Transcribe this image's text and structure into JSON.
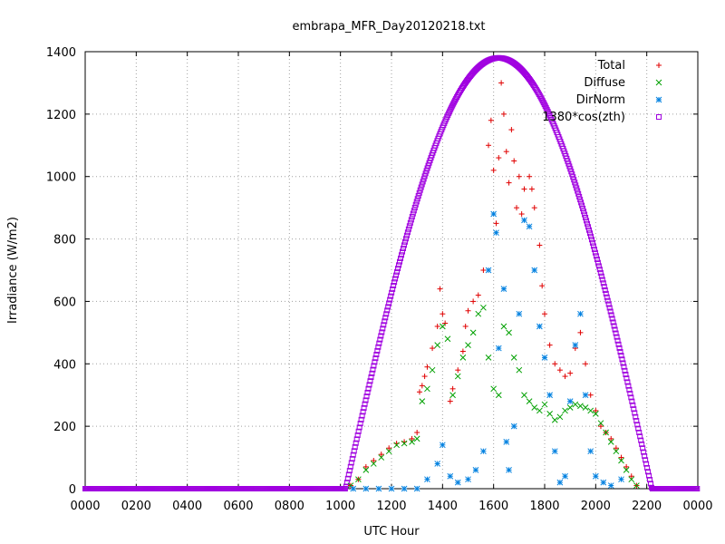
{
  "chart_data": {
    "type": "scatter",
    "title": "embrapa_MFR_Day20120218.txt",
    "xlabel": "UTC Hour",
    "ylabel": "Irradiance (W/m2)",
    "xlim": [
      0,
      24
    ],
    "ylim": [
      0,
      1400
    ],
    "x_ticks": [
      "0000",
      "0200",
      "0400",
      "0600",
      "0800",
      "1000",
      "1200",
      "1400",
      "1600",
      "1800",
      "2000",
      "2200",
      "0000"
    ],
    "y_ticks": [
      "0",
      "200",
      "400",
      "600",
      "800",
      "1000",
      "1200",
      "1400"
    ],
    "grid": true,
    "legend_position": "top-right",
    "series": [
      {
        "name": "Total",
        "marker": "+",
        "color": "#e00000",
        "points": [
          [
            10.4,
            10
          ],
          [
            10.7,
            30
          ],
          [
            11.0,
            70
          ],
          [
            11.3,
            90
          ],
          [
            11.6,
            110
          ],
          [
            11.9,
            130
          ],
          [
            12.2,
            145
          ],
          [
            12.5,
            150
          ],
          [
            12.8,
            160
          ],
          [
            13.0,
            180
          ],
          [
            13.1,
            310
          ],
          [
            13.2,
            330
          ],
          [
            13.3,
            360
          ],
          [
            13.4,
            390
          ],
          [
            13.6,
            450
          ],
          [
            13.8,
            520
          ],
          [
            13.9,
            640
          ],
          [
            14.0,
            560
          ],
          [
            14.1,
            530
          ],
          [
            14.3,
            280
          ],
          [
            14.4,
            320
          ],
          [
            14.6,
            380
          ],
          [
            14.8,
            440
          ],
          [
            14.9,
            520
          ],
          [
            15.0,
            570
          ],
          [
            15.2,
            600
          ],
          [
            15.4,
            620
          ],
          [
            15.6,
            700
          ],
          [
            15.8,
            1100
          ],
          [
            15.9,
            1180
          ],
          [
            16.0,
            1020
          ],
          [
            16.1,
            850
          ],
          [
            16.2,
            1060
          ],
          [
            16.3,
            1300
          ],
          [
            16.4,
            1200
          ],
          [
            16.5,
            1080
          ],
          [
            16.6,
            980
          ],
          [
            16.7,
            1150
          ],
          [
            16.8,
            1050
          ],
          [
            16.9,
            900
          ],
          [
            17.0,
            1000
          ],
          [
            17.1,
            880
          ],
          [
            17.2,
            960
          ],
          [
            17.4,
            1000
          ],
          [
            17.5,
            960
          ],
          [
            17.6,
            900
          ],
          [
            17.8,
            780
          ],
          [
            17.9,
            650
          ],
          [
            18.0,
            560
          ],
          [
            18.2,
            460
          ],
          [
            18.4,
            400
          ],
          [
            18.6,
            380
          ],
          [
            18.8,
            360
          ],
          [
            19.0,
            370
          ],
          [
            19.2,
            450
          ],
          [
            19.4,
            500
          ],
          [
            19.6,
            400
          ],
          [
            19.8,
            300
          ],
          [
            20.0,
            250
          ],
          [
            20.2,
            200
          ],
          [
            20.4,
            180
          ],
          [
            20.6,
            160
          ],
          [
            20.8,
            130
          ],
          [
            21.0,
            100
          ],
          [
            21.2,
            70
          ],
          [
            21.4,
            40
          ],
          [
            21.6,
            10
          ]
        ]
      },
      {
        "name": "Diffuse",
        "marker": "x",
        "color": "#00a000",
        "points": [
          [
            10.4,
            10
          ],
          [
            10.7,
            30
          ],
          [
            11.0,
            60
          ],
          [
            11.3,
            80
          ],
          [
            11.6,
            100
          ],
          [
            11.9,
            120
          ],
          [
            12.2,
            140
          ],
          [
            12.5,
            145
          ],
          [
            12.8,
            150
          ],
          [
            13.0,
            160
          ],
          [
            13.2,
            280
          ],
          [
            13.4,
            320
          ],
          [
            13.6,
            380
          ],
          [
            13.8,
            460
          ],
          [
            14.0,
            520
          ],
          [
            14.2,
            480
          ],
          [
            14.4,
            300
          ],
          [
            14.6,
            360
          ],
          [
            14.8,
            420
          ],
          [
            15.0,
            460
          ],
          [
            15.2,
            500
          ],
          [
            15.4,
            560
          ],
          [
            15.6,
            580
          ],
          [
            15.8,
            420
          ],
          [
            16.0,
            320
          ],
          [
            16.2,
            300
          ],
          [
            16.4,
            520
          ],
          [
            16.6,
            500
          ],
          [
            16.8,
            420
          ],
          [
            17.0,
            380
          ],
          [
            17.2,
            300
          ],
          [
            17.4,
            280
          ],
          [
            17.6,
            260
          ],
          [
            17.8,
            250
          ],
          [
            18.0,
            270
          ],
          [
            18.2,
            240
          ],
          [
            18.4,
            220
          ],
          [
            18.6,
            230
          ],
          [
            18.8,
            250
          ],
          [
            19.0,
            260
          ],
          [
            19.2,
            270
          ],
          [
            19.4,
            265
          ],
          [
            19.6,
            260
          ],
          [
            19.8,
            250
          ],
          [
            20.0,
            240
          ],
          [
            20.2,
            210
          ],
          [
            20.4,
            180
          ],
          [
            20.6,
            150
          ],
          [
            20.8,
            120
          ],
          [
            21.0,
            90
          ],
          [
            21.2,
            60
          ],
          [
            21.4,
            30
          ],
          [
            21.6,
            10
          ]
        ]
      },
      {
        "name": "DirNorm",
        "marker": "*",
        "color": "#0080e0",
        "points": [
          [
            10.5,
            0
          ],
          [
            11.0,
            0
          ],
          [
            11.5,
            0
          ],
          [
            12.0,
            0
          ],
          [
            12.5,
            0
          ],
          [
            13.0,
            0
          ],
          [
            13.4,
            30
          ],
          [
            13.8,
            80
          ],
          [
            14.0,
            140
          ],
          [
            14.3,
            40
          ],
          [
            14.6,
            20
          ],
          [
            15.0,
            30
          ],
          [
            15.3,
            60
          ],
          [
            15.6,
            120
          ],
          [
            15.8,
            700
          ],
          [
            16.0,
            880
          ],
          [
            16.1,
            820
          ],
          [
            16.2,
            450
          ],
          [
            16.4,
            640
          ],
          [
            16.5,
            150
          ],
          [
            16.6,
            60
          ],
          [
            16.8,
            200
          ],
          [
            17.0,
            560
          ],
          [
            17.2,
            860
          ],
          [
            17.4,
            840
          ],
          [
            17.6,
            700
          ],
          [
            17.8,
            520
          ],
          [
            18.0,
            420
          ],
          [
            18.2,
            300
          ],
          [
            18.4,
            120
          ],
          [
            18.6,
            20
          ],
          [
            18.8,
            40
          ],
          [
            19.0,
            280
          ],
          [
            19.2,
            460
          ],
          [
            19.4,
            560
          ],
          [
            19.6,
            300
          ],
          [
            19.8,
            120
          ],
          [
            20.0,
            40
          ],
          [
            20.3,
            20
          ],
          [
            20.6,
            10
          ],
          [
            21.0,
            30
          ]
        ]
      },
      {
        "name": "1380*cos(zth)",
        "marker": "square",
        "color": "#a000e0",
        "function": "1380*cos(zth)",
        "zero_before_hour": 10.2,
        "zero_after_hour": 22.2
      }
    ]
  }
}
